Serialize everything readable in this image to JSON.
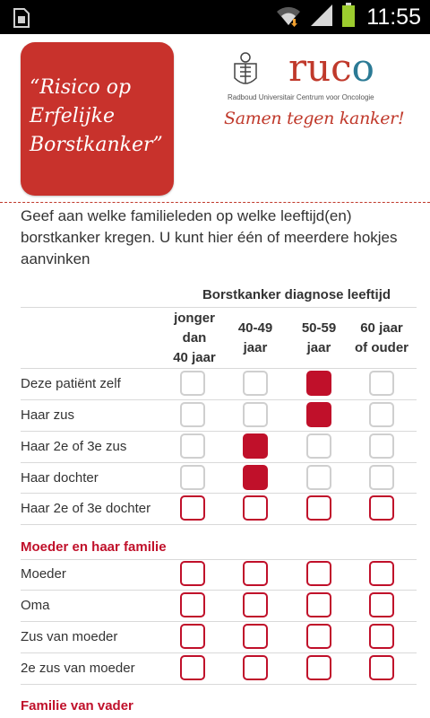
{
  "status_bar": {
    "time": "11:55",
    "icons": [
      "sim-card-icon",
      "wifi-icon",
      "signal-icon",
      "battery-icon"
    ]
  },
  "header": {
    "app_logo_lines": [
      "“Risico op",
      "Erfelijke",
      "Borstkanker”"
    ],
    "brand_name_left": "ruc",
    "brand_name_right": "o",
    "brand_subtitle": "Radboud Universitair Centrum voor Oncologie",
    "brand_slogan": "Samen tegen kanker!"
  },
  "intro_text": "Geef aan welke familieleden op welke leeftijd(en) borstkanker kregen. U kunt hier één of meerdere hokjes aanvinken",
  "table": {
    "header": "Borstkanker diagnose leeftijd",
    "columns": [
      {
        "lines": [
          "jonger",
          "dan",
          "40 jaar"
        ]
      },
      {
        "lines": [
          "40-49",
          "jaar"
        ]
      },
      {
        "lines": [
          "50-59",
          "jaar"
        ]
      },
      {
        "lines": [
          "60 jaar",
          "of ouder"
        ]
      }
    ]
  },
  "rows": [
    {
      "label": "Deze patiënt zelf",
      "style": "grey",
      "checked": [
        false,
        false,
        true,
        false
      ]
    },
    {
      "label": "Haar zus",
      "style": "grey",
      "checked": [
        false,
        false,
        true,
        false
      ]
    },
    {
      "label": "Haar 2e of 3e zus",
      "style": "grey",
      "checked": [
        false,
        true,
        false,
        false
      ]
    },
    {
      "label": "Haar dochter",
      "style": "grey",
      "checked": [
        false,
        true,
        false,
        false
      ]
    },
    {
      "label": "Haar 2e of 3e dochter",
      "style": "red",
      "checked": [
        false,
        false,
        false,
        false
      ]
    }
  ],
  "sections": [
    {
      "title": "Moeder en haar familie",
      "rows": [
        {
          "label": "Moeder",
          "style": "red",
          "checked": [
            false,
            false,
            false,
            false
          ]
        },
        {
          "label": "Oma",
          "style": "red",
          "checked": [
            false,
            false,
            false,
            false
          ]
        },
        {
          "label": "Zus van moeder",
          "style": "red",
          "checked": [
            false,
            false,
            false,
            false
          ]
        },
        {
          "label": "2e zus van moeder",
          "style": "red",
          "checked": [
            false,
            false,
            false,
            false
          ]
        }
      ]
    },
    {
      "title": "Familie van vader",
      "rows": []
    }
  ],
  "colors": {
    "accent_red": "#c0102a",
    "logo_red": "#c8322c",
    "brand_teal": "#2b7a95",
    "status_bar": "#000000",
    "battery_green": "#9ccc2e"
  }
}
